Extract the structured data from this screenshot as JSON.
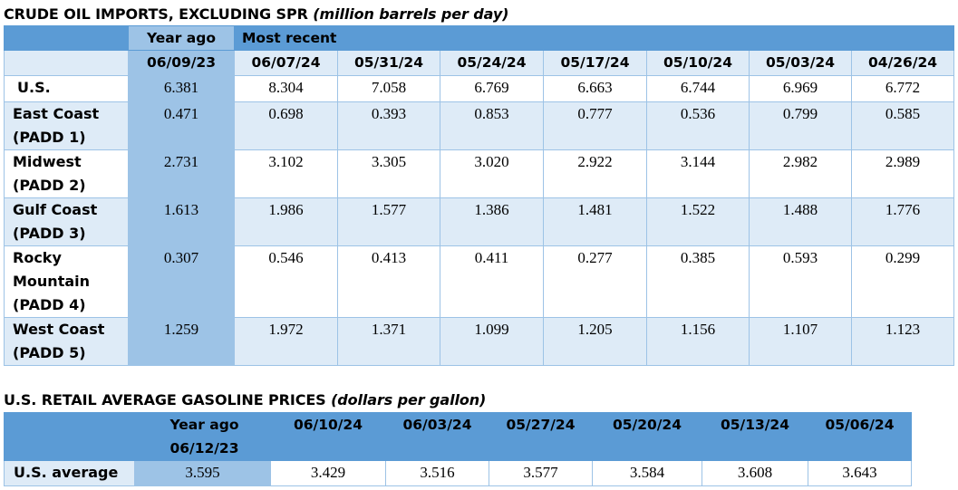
{
  "crude": {
    "title_main": "CRUDE OIL IMPORTS, EXCLUDING SPR",
    "title_unit": "(million barrels per day)",
    "year_ago_label": "Year ago",
    "most_recent_label": "Most recent",
    "dates": [
      "06/09/23",
      "06/07/24",
      "05/31/24",
      "05/24/24",
      "05/17/24",
      "05/10/24",
      "05/03/24",
      "04/26/24"
    ],
    "rows": [
      {
        "label": "U.S.",
        "values": [
          "6.381",
          "8.304",
          "7.058",
          "6.769",
          "6.663",
          "6.744",
          "6.969",
          "6.772"
        ]
      },
      {
        "label": "East Coast (PADD 1)",
        "values": [
          "0.471",
          "0.698",
          "0.393",
          "0.853",
          "0.777",
          "0.536",
          "0.799",
          "0.585"
        ]
      },
      {
        "label": "Midwest (PADD 2)",
        "values": [
          "2.731",
          "3.102",
          "3.305",
          "3.020",
          "2.922",
          "3.144",
          "2.982",
          "2.989"
        ]
      },
      {
        "label": "Gulf Coast (PADD 3)",
        "values": [
          "1.613",
          "1.986",
          "1.577",
          "1.386",
          "1.481",
          "1.522",
          "1.488",
          "1.776"
        ]
      },
      {
        "label": "Rocky Mountain (PADD 4)",
        "values": [
          "0.307",
          "0.546",
          "0.413",
          "0.411",
          "0.277",
          "0.385",
          "0.593",
          "0.299"
        ]
      },
      {
        "label": "West Coast (PADD 5)",
        "values": [
          "1.259",
          "1.972",
          "1.371",
          "1.099",
          "1.205",
          "1.156",
          "1.107",
          "1.123"
        ]
      }
    ]
  },
  "gasoline": {
    "title_main": "U.S. RETAIL AVERAGE GASOLINE PRICES",
    "title_unit": "(dollars per gallon)",
    "year_ago_label": "Year ago",
    "year_ago_date": "06/12/23",
    "dates": [
      "06/10/24",
      "06/03/24",
      "05/27/24",
      "05/20/24",
      "05/13/24",
      "05/06/24"
    ],
    "row": {
      "label": "U.S. average",
      "values": [
        "3.595",
        "3.429",
        "3.516",
        "3.577",
        "3.584",
        "3.608",
        "3.643"
      ]
    }
  },
  "colors": {
    "header": "#5b9bd5",
    "year_ago": "#9dc3e6",
    "shade": "#deebf7",
    "border": "#9dc3e6"
  }
}
